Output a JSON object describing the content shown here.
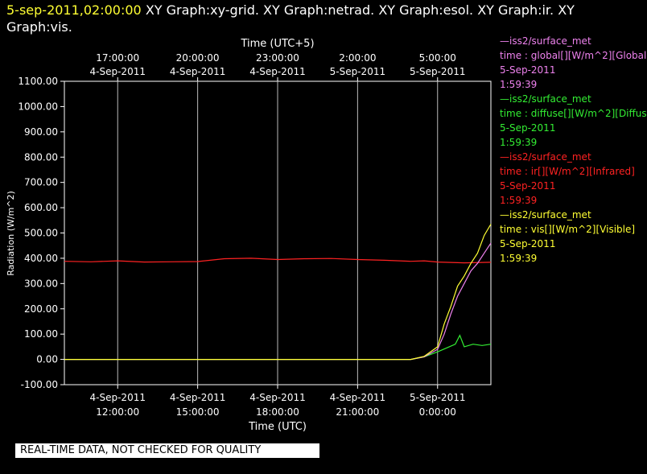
{
  "title_bar": {
    "timestamp": "5-sep-2011,02:00:00",
    "graphs": "XY Graph:xy-grid.  XY Graph:netrad.  XY Graph:esol.  XY Graph:ir.  XY Graph:vis."
  },
  "legend": [
    {
      "color": "#ee82ee",
      "source": "—iss2/surface_met",
      "desc": "time : global[][W/m^2][Global",
      "date": "5-Sep-2011",
      "time": "1:59:39"
    },
    {
      "color": "#33ee33",
      "source": "—iss2/surface_met",
      "desc": "time : diffuse[][W/m^2][Diffus",
      "date": "5-Sep-2011",
      "time": "1:59:39"
    },
    {
      "color": "#ff2222",
      "source": "—iss2/surface_met",
      "desc": "time : ir[][W/m^2][Infrared]",
      "date": "5-Sep-2011",
      "time": "1:59:39"
    },
    {
      "color": "#ffff33",
      "source": "—iss2/surface_met",
      "desc": "time : vis[][W/m^2][Visible]",
      "date": "5-Sep-2011",
      "time": "1:59:39"
    }
  ],
  "footer_note": "REAL-TIME DATA, NOT CHECKED FOR QUALITY",
  "chart_data": {
    "type": "line",
    "xlabel_bottom": "Time (UTC)",
    "xlabel_top": "Time (UTC+5)",
    "ylabel": "Radiation (W/m^2)",
    "x_range_hours_utc": [
      "4-Sep-2011 10:00",
      "5-Sep-2011 02:00"
    ],
    "ylim": [
      -100,
      1100
    ],
    "grid": true,
    "y_ticks": [
      "1100.00",
      "1000.00",
      "900.00",
      "800.00",
      "700.00",
      "600.00",
      "500.00",
      "400.00",
      "300.00",
      "200.00",
      "100.00",
      "0.00",
      "-100.00"
    ],
    "bottom_ticks": [
      {
        "date": "4-Sep-2011",
        "time": "12:00:00"
      },
      {
        "date": "4-Sep-2011",
        "time": "15:00:00"
      },
      {
        "date": "4-Sep-2011",
        "time": "18:00:00"
      },
      {
        "date": "4-Sep-2011",
        "time": "21:00:00"
      },
      {
        "date": "5-Sep-2011",
        "time": "0:00:00"
      }
    ],
    "top_ticks": [
      {
        "time": "17:00:00",
        "date": "4-Sep-2011"
      },
      {
        "time": "20:00:00",
        "date": "4-Sep-2011"
      },
      {
        "time": "23:00:00",
        "date": "4-Sep-2011"
      },
      {
        "time": "2:00:00",
        "date": "5-Sep-2011"
      },
      {
        "time": "5:00:00",
        "date": "5-Sep-2011"
      }
    ],
    "series": [
      {
        "name": "ir",
        "color": "#ff2222",
        "x": [
          "4-Sep 10:00",
          "4-Sep 11:00",
          "4-Sep 12:00",
          "4-Sep 13:00",
          "4-Sep 14:00",
          "4-Sep 15:00",
          "4-Sep 16:00",
          "4-Sep 17:00",
          "4-Sep 18:00",
          "4-Sep 19:00",
          "4-Sep 20:00",
          "4-Sep 21:00",
          "4-Sep 22:00",
          "4-Sep 23:00",
          "4-Sep 23:30",
          "5-Sep 0:00",
          "5-Sep 1:00",
          "5-Sep 2:00"
        ],
        "y": [
          388,
          386,
          390,
          385,
          386,
          387,
          398,
          400,
          395,
          398,
          399,
          395,
          392,
          388,
          390,
          385,
          382,
          384
        ]
      },
      {
        "name": "diffuse",
        "color": "#33ee33",
        "x": [
          "4-Sep 10:00",
          "4-Sep 16:00",
          "4-Sep 22:00",
          "4-Sep 23:00",
          "4-Sep 23:30",
          "5-Sep 0:00",
          "5-Sep 0:20",
          "5-Sep 0:40",
          "5-Sep 0:50",
          "5-Sep 1:00",
          "5-Sep 1:20",
          "5-Sep 1:40",
          "5-Sep 2:00"
        ],
        "y": [
          0,
          0,
          0,
          0,
          10,
          30,
          45,
          60,
          95,
          50,
          60,
          55,
          60
        ]
      },
      {
        "name": "global",
        "color": "#ee82ee",
        "x": [
          "4-Sep 10:00",
          "4-Sep 16:00",
          "4-Sep 22:00",
          "4-Sep 23:00",
          "4-Sep 23:30",
          "5-Sep 0:00",
          "5-Sep 0:15",
          "5-Sep 0:30",
          "5-Sep 0:45",
          "5-Sep 1:00",
          "5-Sep 1:15",
          "5-Sep 1:30",
          "5-Sep 1:45",
          "5-Sep 2:00"
        ],
        "y": [
          0,
          0,
          0,
          0,
          10,
          40,
          100,
          180,
          250,
          300,
          350,
          380,
          420,
          460
        ]
      },
      {
        "name": "vis",
        "color": "#ffff33",
        "x": [
          "4-Sep 10:00",
          "4-Sep 16:00",
          "4-Sep 22:00",
          "4-Sep 23:00",
          "4-Sep 23:30",
          "5-Sep 0:00",
          "5-Sep 0:15",
          "5-Sep 0:30",
          "5-Sep 0:45",
          "5-Sep 1:00",
          "5-Sep 1:15",
          "5-Sep 1:30",
          "5-Sep 1:45",
          "5-Sep 2:00"
        ],
        "y": [
          0,
          0,
          0,
          0,
          12,
          50,
          140,
          210,
          290,
          330,
          380,
          420,
          490,
          535
        ]
      }
    ]
  }
}
